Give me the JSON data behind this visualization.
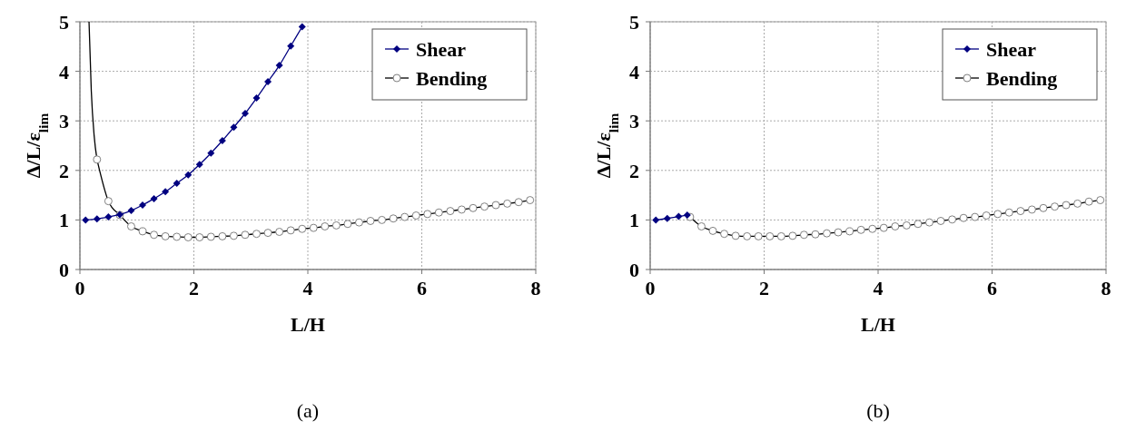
{
  "chart_data": [
    {
      "type": "line",
      "xlabel": "L/H",
      "ylabel": "Δ/L/ε$_{lim}$",
      "annotations": [
        "(a)"
      ],
      "xlim": [
        0,
        8
      ],
      "ylim": [
        0,
        5
      ],
      "xticks": [
        0,
        2,
        4,
        6,
        8
      ],
      "yticks": [
        0,
        1,
        2,
        3,
        4,
        5
      ],
      "grid": true,
      "legend": "top right",
      "line_style": "solid",
      "series": [
        {
          "name": "Shear",
          "color": "#000080",
          "marker": "diamond",
          "x": [
            0.1,
            0.3,
            0.5,
            0.7,
            0.9,
            1.1,
            1.3,
            1.5,
            1.7,
            1.9,
            2.1,
            2.3,
            2.5,
            2.7,
            2.9,
            3.1,
            3.3,
            3.5,
            3.7,
            3.9
          ],
          "values": [
            1.0,
            1.02,
            1.06,
            1.11,
            1.19,
            1.3,
            1.43,
            1.57,
            1.74,
            1.91,
            2.12,
            2.35,
            2.6,
            2.87,
            3.15,
            3.46,
            3.79,
            4.12,
            4.51,
            4.9
          ]
        },
        {
          "name": "Bending",
          "color": "#000000",
          "marker": "circle",
          "x": [
            0.3,
            0.5,
            0.7,
            0.9,
            1.1,
            1.3,
            1.5,
            1.7,
            1.9,
            2.1,
            2.3,
            2.5,
            2.7,
            2.9,
            3.1,
            3.3,
            3.5,
            3.7,
            3.9,
            4.1,
            4.3,
            4.5,
            4.7,
            4.9,
            5.1,
            5.3,
            5.5,
            5.7,
            5.9,
            6.1,
            6.3,
            6.5,
            6.7,
            6.9,
            7.1,
            7.3,
            7.5,
            7.7,
            7.9
          ],
          "values": [
            2.22,
            1.38,
            1.1,
            0.87,
            0.77,
            0.7,
            0.67,
            0.66,
            0.65,
            0.65,
            0.66,
            0.67,
            0.68,
            0.7,
            0.72,
            0.74,
            0.76,
            0.79,
            0.82,
            0.84,
            0.87,
            0.89,
            0.92,
            0.95,
            0.98,
            1.0,
            1.03,
            1.06,
            1.09,
            1.12,
            1.15,
            1.18,
            1.21,
            1.24,
            1.27,
            1.3,
            1.33,
            1.36,
            1.4
          ]
        },
        {
          "color": "#000000",
          "marker": "none",
          "x": [
            0.16,
            0.2,
            0.25,
            0.3
          ],
          "values": [
            5.0,
            3.6,
            2.7,
            2.22
          ]
        }
      ]
    },
    {
      "type": "line",
      "xlabel": "L/H",
      "ylabel": "Δ/L/ε$_{lim}$",
      "annotations": [
        "(b)"
      ],
      "xlim": [
        0,
        8
      ],
      "ylim": [
        0,
        5
      ],
      "xticks": [
        0,
        2,
        4,
        6,
        8
      ],
      "yticks": [
        0,
        1,
        2,
        3,
        4,
        5
      ],
      "grid": true,
      "legend": "top right",
      "line_style": "solid",
      "series": [
        {
          "name": "Shear",
          "color": "#000080",
          "marker": "diamond",
          "x": [
            0.1,
            0.3,
            0.5,
            0.65
          ],
          "values": [
            1.0,
            1.03,
            1.07,
            1.1
          ]
        },
        {
          "name": "Bending",
          "color": "#000000",
          "marker": "circle",
          "x": [
            0.7,
            0.9,
            1.1,
            1.3,
            1.5,
            1.7,
            1.9,
            2.1,
            2.3,
            2.5,
            2.7,
            2.9,
            3.1,
            3.3,
            3.5,
            3.7,
            3.9,
            4.1,
            4.3,
            4.5,
            4.7,
            4.9,
            5.1,
            5.3,
            5.5,
            5.7,
            5.9,
            6.1,
            6.3,
            6.5,
            6.7,
            6.9,
            7.1,
            7.3,
            7.5,
            7.7,
            7.9
          ],
          "values": [
            1.06,
            0.87,
            0.78,
            0.72,
            0.68,
            0.67,
            0.67,
            0.67,
            0.67,
            0.68,
            0.7,
            0.71,
            0.73,
            0.75,
            0.77,
            0.8,
            0.82,
            0.84,
            0.87,
            0.89,
            0.92,
            0.95,
            0.98,
            1.01,
            1.04,
            1.06,
            1.09,
            1.12,
            1.15,
            1.18,
            1.21,
            1.24,
            1.27,
            1.3,
            1.33,
            1.37,
            1.4
          ]
        }
      ]
    }
  ]
}
